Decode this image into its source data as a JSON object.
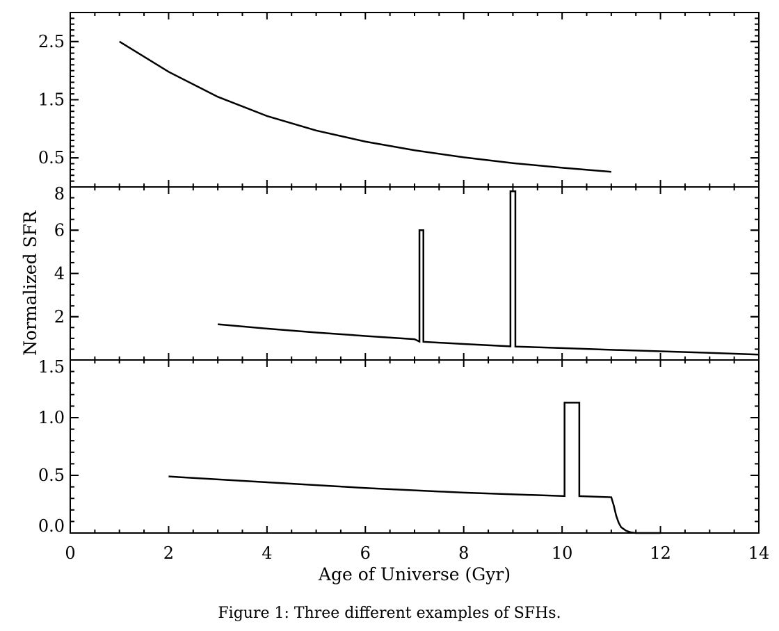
{
  "caption": "Figure 1: Three different examples of SFHs.",
  "chart_data": [
    {
      "type": "line",
      "xlabel": "Age of Universe (Gyr)",
      "ylabel": "",
      "xlim": [
        0,
        14
      ],
      "ylim": [
        0,
        3.0
      ],
      "yticks": [
        0.5,
        1.5,
        2.5
      ],
      "ytick_labels": [
        "0.5",
        "1.5",
        "2.5"
      ],
      "xticks": [
        0,
        2,
        4,
        6,
        8,
        10,
        12,
        14
      ],
      "grid": false,
      "series": [
        {
          "x": [
            1,
            2,
            3,
            4,
            5,
            6,
            7,
            8,
            9,
            10,
            11
          ],
          "y": [
            2.5,
            1.98,
            1.55,
            1.22,
            0.97,
            0.78,
            0.63,
            0.51,
            0.41,
            0.33,
            0.26
          ]
        }
      ]
    },
    {
      "type": "line",
      "xlabel": "Age of Universe (Gyr)",
      "ylabel": "Normalized SFR",
      "xlim": [
        0,
        14
      ],
      "ylim": [
        0,
        8
      ],
      "yticks": [
        2,
        4,
        6,
        8
      ],
      "ytick_labels": [
        "2",
        "4",
        "6",
        "8"
      ],
      "xticks": [
        0,
        2,
        4,
        6,
        8,
        10,
        12,
        14
      ],
      "grid": false,
      "series": [
        {
          "x": [
            3,
            4,
            5,
            6,
            7,
            7.1,
            7.1,
            7.18,
            7.18,
            8,
            8.95,
            8.95,
            9.05,
            9.05,
            10,
            11,
            12,
            13,
            14
          ],
          "y": [
            1.65,
            1.45,
            1.27,
            1.11,
            0.96,
            0.85,
            6.0,
            6.0,
            0.84,
            0.74,
            0.63,
            7.8,
            7.8,
            0.62,
            0.55,
            0.47,
            0.4,
            0.33,
            0.25
          ]
        }
      ]
    },
    {
      "type": "line",
      "xlabel": "Age of Universe (Gyr)",
      "ylabel": "",
      "xlim": [
        0,
        14
      ],
      "ylim": [
        0,
        1.5
      ],
      "yticks": [
        0.0,
        0.5,
        1.0,
        1.5
      ],
      "ytick_labels": [
        "0.0",
        "0.5",
        "1.0",
        "1.5"
      ],
      "xticks": [
        0,
        2,
        4,
        6,
        8,
        10,
        12,
        14
      ],
      "xtick_labels": [
        "0",
        "2",
        "4",
        "6",
        "8",
        "10",
        "12",
        "14"
      ],
      "grid": false,
      "series": [
        {
          "x": [
            2,
            4,
            6,
            8,
            10.05,
            10.05,
            10.35,
            10.35,
            11,
            11.05,
            11.1,
            11.15,
            11.2,
            11.3,
            11.4,
            11.5,
            11.7,
            12
          ],
          "y": [
            0.49,
            0.44,
            0.39,
            0.35,
            0.32,
            1.13,
            1.13,
            0.32,
            0.31,
            0.24,
            0.15,
            0.09,
            0.05,
            0.02,
            0.005,
            0.0,
            0.0,
            0.0
          ]
        }
      ]
    }
  ]
}
